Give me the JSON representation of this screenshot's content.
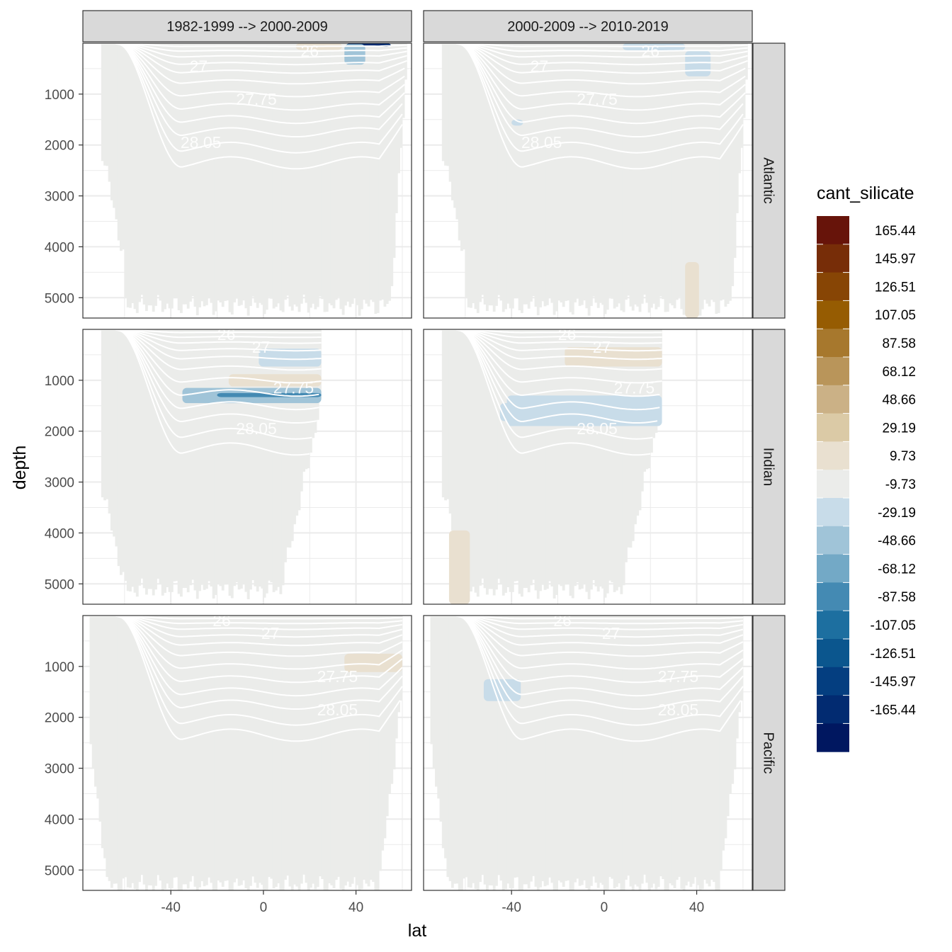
{
  "chart_data": {
    "type": "heatmap",
    "subtype": "faceted ocean section (filled contour) with isopycnal contours",
    "x_label": "lat",
    "y_label": "depth",
    "x_ticks": [
      -40,
      0,
      40
    ],
    "y_ticks": [
      1000,
      2000,
      3000,
      4000,
      5000
    ],
    "xlim": [
      -78,
      64
    ],
    "ylim": [
      5400,
      0
    ],
    "columns": [
      "1982-1999 --> 2000-2009",
      "2000-2009 --> 2010-2019"
    ],
    "rows": [
      "Atlantic",
      "Indian",
      "Pacific"
    ],
    "legend": {
      "title": "cant_silicate",
      "bins": [
        {
          "label": "165.44",
          "color": "#67140a"
        },
        {
          "label": "145.97",
          "color": "#772d08"
        },
        {
          "label": "126.51",
          "color": "#874505"
        },
        {
          "label": "107.05",
          "color": "#965c02"
        },
        {
          "label": "87.58",
          "color": "#a7782d"
        },
        {
          "label": "68.12",
          "color": "#b9955a"
        },
        {
          "label": "48.66",
          "color": "#cbb186"
        },
        {
          "label": "29.19",
          "color": "#dbcaa6"
        },
        {
          "label": "9.73",
          "color": "#e9e0d0"
        },
        {
          "label": "-9.73",
          "color": "#ebecea"
        },
        {
          "label": "-29.19",
          "color": "#c8dce9"
        },
        {
          "label": "-48.66",
          "color": "#a0c4d8"
        },
        {
          "label": "-68.12",
          "color": "#73a9c6"
        },
        {
          "label": "-87.58",
          "color": "#448ab3"
        },
        {
          "label": "-107.05",
          "color": "#1d6fa0"
        },
        {
          "label": "-126.51",
          "color": "#0b568e"
        },
        {
          "label": "-145.97",
          "color": "#043e80"
        },
        {
          "label": "-165.44",
          "color": "#022b71"
        },
        {
          "label": "",
          "color": "#001760"
        }
      ]
    },
    "isopycnals": [
      "26",
      "27",
      "27.75",
      "28.05"
    ],
    "colors": {
      "ocean": "#ebecea",
      "strip": "#d9d9d9",
      "grid": "#ebebeb",
      "contour": "#ffffff"
    },
    "panels": [
      {
        "ocean": "Atlantic",
        "period": "1982-1999 --> 2000-2009",
        "lat_range": [
          -70,
          62
        ],
        "max_depth": 5400,
        "contour_labels": [
          {
            "text": "26",
            "lat": 20,
            "depth": 150
          },
          {
            "text": "27",
            "lat": -28,
            "depth": 450
          },
          {
            "text": "27.75",
            "lat": -3,
            "depth": 1100
          },
          {
            "text": "28.05",
            "lat": -27,
            "depth": 1950
          }
        ],
        "anomalies": [
          {
            "value": 25,
            "lat": [
              14,
              34
            ],
            "depth": [
              0,
              130
            ]
          },
          {
            "value": -150,
            "lat": [
              36,
              55
            ],
            "depth": [
              0,
              70
            ]
          },
          {
            "value": -35,
            "lat": [
              35,
              44
            ],
            "depth": [
              20,
              420
            ]
          }
        ]
      },
      {
        "ocean": "Atlantic",
        "period": "2000-2009 --> 2010-2019",
        "lat_range": [
          -70,
          62
        ],
        "max_depth": 5400,
        "contour_labels": [
          {
            "text": "26",
            "lat": 20,
            "depth": 150
          },
          {
            "text": "27",
            "lat": -28,
            "depth": 450
          },
          {
            "text": "27.75",
            "lat": -3,
            "depth": 1100
          },
          {
            "text": "28.05",
            "lat": -27,
            "depth": 1950
          }
        ],
        "anomalies": [
          {
            "value": -20,
            "lat": [
              8,
              35
            ],
            "depth": [
              0,
              140
            ]
          },
          {
            "value": -20,
            "lat": [
              35,
              46
            ],
            "depth": [
              150,
              650
            ]
          },
          {
            "value": -25,
            "lat": [
              -40,
              -35
            ],
            "depth": [
              1500,
              1620
            ]
          },
          {
            "value": 25,
            "lat": [
              35,
              41
            ],
            "depth": [
              4300,
              5400
            ]
          }
        ]
      },
      {
        "ocean": "Indian",
        "period": "1982-1999 --> 2000-2009",
        "lat_range": [
          -70,
          25
        ],
        "max_depth": 5400,
        "contour_labels": [
          {
            "text": "26",
            "lat": -16,
            "depth": 100
          },
          {
            "text": "27",
            "lat": -1,
            "depth": 350
          },
          {
            "text": "27.75",
            "lat": 13,
            "depth": 1150
          },
          {
            "text": "28.05",
            "lat": -3,
            "depth": 1950
          }
        ],
        "anomalies": [
          {
            "value": -25,
            "lat": [
              -2,
              25
            ],
            "depth": [
              380,
              730
            ]
          },
          {
            "value": 22,
            "lat": [
              -15,
              25
            ],
            "depth": [
              880,
              1120
            ]
          },
          {
            "value": -30,
            "lat": [
              -35,
              25
            ],
            "depth": [
              1150,
              1450
            ]
          },
          {
            "value": -80,
            "lat": [
              -20,
              25
            ],
            "depth": [
              1250,
              1330
            ]
          }
        ]
      },
      {
        "ocean": "Indian",
        "period": "2000-2009 --> 2010-2019",
        "lat_range": [
          -70,
          25
        ],
        "max_depth": 5400,
        "contour_labels": [
          {
            "text": "26",
            "lat": -16,
            "depth": 100
          },
          {
            "text": "27",
            "lat": -1,
            "depth": 350
          },
          {
            "text": "27.75",
            "lat": 13,
            "depth": 1150
          },
          {
            "text": "28.05",
            "lat": -3,
            "depth": 1950
          }
        ],
        "anomalies": [
          {
            "value": 22,
            "lat": [
              -17,
              25
            ],
            "depth": [
              350,
              730
            ]
          },
          {
            "value": -22,
            "lat": [
              -42,
              25
            ],
            "depth": [
              1300,
              1900
            ]
          },
          {
            "value": -20,
            "lat": [
              -45,
              -40
            ],
            "depth": [
              1450,
              1800
            ]
          },
          {
            "value": 22,
            "lat": [
              -67,
              -58
            ],
            "depth": [
              3950,
              5400
            ]
          }
        ]
      },
      {
        "ocean": "Pacific",
        "period": "1982-1999 --> 2000-2009",
        "lat_range": [
          -75,
          60
        ],
        "max_depth": 5400,
        "contour_labels": [
          {
            "text": "26",
            "lat": -18,
            "depth": 100
          },
          {
            "text": "27",
            "lat": 3,
            "depth": 350
          },
          {
            "text": "27.75",
            "lat": 32,
            "depth": 1200
          },
          {
            "text": "28.05",
            "lat": 32,
            "depth": 1850
          }
        ],
        "anomalies": [
          {
            "value": 22,
            "lat": [
              35,
              60
            ],
            "depth": [
              750,
              1110
            ]
          }
        ]
      },
      {
        "ocean": "Pacific",
        "period": "2000-2009 --> 2010-2019",
        "lat_range": [
          -75,
          60
        ],
        "max_depth": 5400,
        "contour_labels": [
          {
            "text": "26",
            "lat": -18,
            "depth": 100
          },
          {
            "text": "27",
            "lat": 3,
            "depth": 350
          },
          {
            "text": "27.75",
            "lat": 32,
            "depth": 1200
          },
          {
            "text": "28.05",
            "lat": 32,
            "depth": 1850
          }
        ],
        "anomalies": [
          {
            "value": -22,
            "lat": [
              -52,
              -36
            ],
            "depth": [
              1250,
              1680
            ]
          }
        ]
      }
    ]
  }
}
